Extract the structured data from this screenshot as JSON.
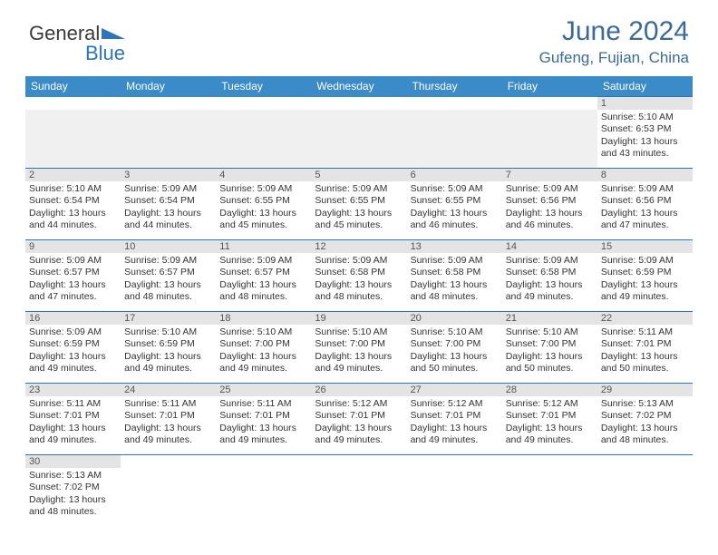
{
  "logo": {
    "dark": "General",
    "blue": "Blue"
  },
  "title": "June 2024",
  "location": "Gufeng, Fujian, China",
  "colors": {
    "header_bg": "#3b8bc8",
    "header_text": "#ffffff",
    "title_color": "#3a6a9a",
    "daynum_bg": "#e4e4e4",
    "border": "#2b75bb"
  },
  "day_names": [
    "Sunday",
    "Monday",
    "Tuesday",
    "Wednesday",
    "Thursday",
    "Friday",
    "Saturday"
  ],
  "weeks": [
    [
      null,
      null,
      null,
      null,
      null,
      null,
      {
        "n": "1",
        "sr": "5:10 AM",
        "ss": "6:53 PM",
        "dl": "13 hours and 43 minutes."
      }
    ],
    [
      {
        "n": "2",
        "sr": "5:10 AM",
        "ss": "6:54 PM",
        "dl": "13 hours and 44 minutes."
      },
      {
        "n": "3",
        "sr": "5:09 AM",
        "ss": "6:54 PM",
        "dl": "13 hours and 44 minutes."
      },
      {
        "n": "4",
        "sr": "5:09 AM",
        "ss": "6:55 PM",
        "dl": "13 hours and 45 minutes."
      },
      {
        "n": "5",
        "sr": "5:09 AM",
        "ss": "6:55 PM",
        "dl": "13 hours and 45 minutes."
      },
      {
        "n": "6",
        "sr": "5:09 AM",
        "ss": "6:55 PM",
        "dl": "13 hours and 46 minutes."
      },
      {
        "n": "7",
        "sr": "5:09 AM",
        "ss": "6:56 PM",
        "dl": "13 hours and 46 minutes."
      },
      {
        "n": "8",
        "sr": "5:09 AM",
        "ss": "6:56 PM",
        "dl": "13 hours and 47 minutes."
      }
    ],
    [
      {
        "n": "9",
        "sr": "5:09 AM",
        "ss": "6:57 PM",
        "dl": "13 hours and 47 minutes."
      },
      {
        "n": "10",
        "sr": "5:09 AM",
        "ss": "6:57 PM",
        "dl": "13 hours and 48 minutes."
      },
      {
        "n": "11",
        "sr": "5:09 AM",
        "ss": "6:57 PM",
        "dl": "13 hours and 48 minutes."
      },
      {
        "n": "12",
        "sr": "5:09 AM",
        "ss": "6:58 PM",
        "dl": "13 hours and 48 minutes."
      },
      {
        "n": "13",
        "sr": "5:09 AM",
        "ss": "6:58 PM",
        "dl": "13 hours and 48 minutes."
      },
      {
        "n": "14",
        "sr": "5:09 AM",
        "ss": "6:58 PM",
        "dl": "13 hours and 49 minutes."
      },
      {
        "n": "15",
        "sr": "5:09 AM",
        "ss": "6:59 PM",
        "dl": "13 hours and 49 minutes."
      }
    ],
    [
      {
        "n": "16",
        "sr": "5:09 AM",
        "ss": "6:59 PM",
        "dl": "13 hours and 49 minutes."
      },
      {
        "n": "17",
        "sr": "5:10 AM",
        "ss": "6:59 PM",
        "dl": "13 hours and 49 minutes."
      },
      {
        "n": "18",
        "sr": "5:10 AM",
        "ss": "7:00 PM",
        "dl": "13 hours and 49 minutes."
      },
      {
        "n": "19",
        "sr": "5:10 AM",
        "ss": "7:00 PM",
        "dl": "13 hours and 49 minutes."
      },
      {
        "n": "20",
        "sr": "5:10 AM",
        "ss": "7:00 PM",
        "dl": "13 hours and 50 minutes."
      },
      {
        "n": "21",
        "sr": "5:10 AM",
        "ss": "7:00 PM",
        "dl": "13 hours and 50 minutes."
      },
      {
        "n": "22",
        "sr": "5:11 AM",
        "ss": "7:01 PM",
        "dl": "13 hours and 50 minutes."
      }
    ],
    [
      {
        "n": "23",
        "sr": "5:11 AM",
        "ss": "7:01 PM",
        "dl": "13 hours and 49 minutes."
      },
      {
        "n": "24",
        "sr": "5:11 AM",
        "ss": "7:01 PM",
        "dl": "13 hours and 49 minutes."
      },
      {
        "n": "25",
        "sr": "5:11 AM",
        "ss": "7:01 PM",
        "dl": "13 hours and 49 minutes."
      },
      {
        "n": "26",
        "sr": "5:12 AM",
        "ss": "7:01 PM",
        "dl": "13 hours and 49 minutes."
      },
      {
        "n": "27",
        "sr": "5:12 AM",
        "ss": "7:01 PM",
        "dl": "13 hours and 49 minutes."
      },
      {
        "n": "28",
        "sr": "5:12 AM",
        "ss": "7:01 PM",
        "dl": "13 hours and 49 minutes."
      },
      {
        "n": "29",
        "sr": "5:13 AM",
        "ss": "7:02 PM",
        "dl": "13 hours and 48 minutes."
      }
    ],
    [
      {
        "n": "30",
        "sr": "5:13 AM",
        "ss": "7:02 PM",
        "dl": "13 hours and 48 minutes."
      },
      null,
      null,
      null,
      null,
      null,
      null
    ]
  ],
  "labels": {
    "sunrise": "Sunrise: ",
    "sunset": "Sunset: ",
    "daylight": "Daylight: "
  }
}
